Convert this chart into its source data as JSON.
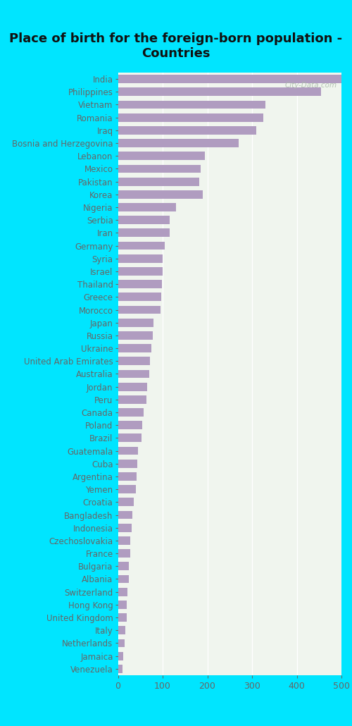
{
  "title": "Place of birth for the foreign-born population -\nCountries",
  "categories": [
    "India",
    "Philippines",
    "Vietnam",
    "Romania",
    "Iraq",
    "Bosnia and Herzegovina",
    "Lebanon",
    "Mexico",
    "Pakistan",
    "Korea",
    "Nigeria",
    "Serbia",
    "Iran",
    "Germany",
    "Syria",
    "Israel",
    "Thailand",
    "Greece",
    "Morocco",
    "Japan",
    "Russia",
    "Ukraine",
    "United Arab Emirates",
    "Australia",
    "Jordan",
    "Peru",
    "Canada",
    "Poland",
    "Brazil",
    "Guatemala",
    "Cuba",
    "Argentina",
    "Yemen",
    "Croatia",
    "Bangladesh",
    "Indonesia",
    "Czechoslovakia",
    "France",
    "Bulgaria",
    "Albania",
    "Switzerland",
    "Hong Kong",
    "United Kingdom",
    "Italy",
    "Netherlands",
    "Jamaica",
    "Venezuela"
  ],
  "values": [
    500,
    455,
    330,
    325,
    310,
    270,
    195,
    185,
    182,
    190,
    130,
    115,
    115,
    105,
    100,
    100,
    98,
    97,
    95,
    80,
    78,
    75,
    72,
    70,
    65,
    63,
    58,
    55,
    53,
    45,
    43,
    42,
    40,
    35,
    33,
    30,
    28,
    27,
    25,
    24,
    22,
    20,
    19,
    17,
    15,
    12,
    10
  ],
  "bar_color": "#b09cc0",
  "background_outer": "#00e5ff",
  "background_plot": "#f0f5ee",
  "label_color": "#666666",
  "title_color": "#111111",
  "xlim": [
    0,
    500
  ],
  "xticks": [
    0,
    100,
    200,
    300,
    400,
    500
  ],
  "title_fontsize": 13,
  "label_fontsize": 8.5,
  "tick_fontsize": 9,
  "watermark": "City-Data.com",
  "watermark_color": "#aabbaa"
}
